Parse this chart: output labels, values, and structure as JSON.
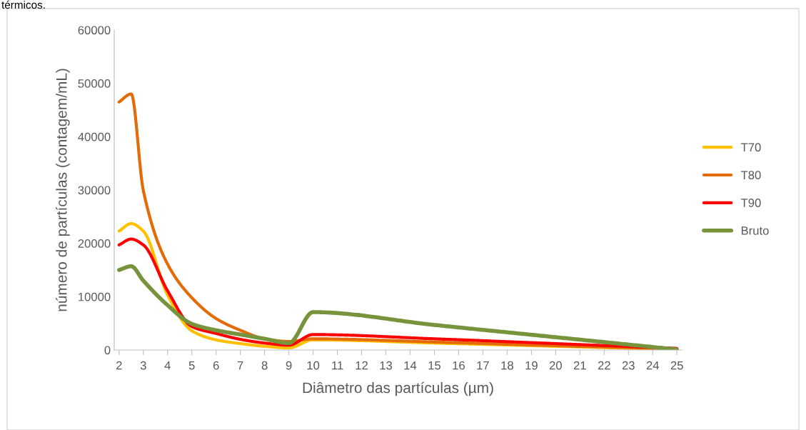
{
  "chart_data": {
    "type": "line",
    "xlabel": "Diâmetro das partículas (µm)",
    "ylabel": "número de partículas (contagem/mL)",
    "annotations": [
      "térmicos."
    ],
    "x": [
      2,
      2.5,
      3,
      4,
      5,
      6,
      7,
      8,
      9,
      10,
      15,
      20,
      25
    ],
    "series": [
      {
        "name": "T70",
        "color": "#ffc000",
        "values": [
          22300,
          23700,
          22300,
          10300,
          3600,
          1900,
          1200,
          700,
          400,
          1900,
          1300,
          700,
          100
        ]
      },
      {
        "name": "T80",
        "color": "#e36c09",
        "values": [
          46500,
          48000,
          29900,
          16100,
          9800,
          5900,
          3700,
          2100,
          1600,
          2100,
          1500,
          800,
          200
        ]
      },
      {
        "name": "T90",
        "color": "#ff0000",
        "values": [
          19700,
          20800,
          19700,
          11100,
          4400,
          3100,
          2000,
          1300,
          900,
          2900,
          2100,
          1200,
          300
        ]
      },
      {
        "name": "Bruto",
        "color": "#77933c",
        "values": [
          15000,
          15700,
          13000,
          8400,
          4900,
          3700,
          2900,
          2100,
          1300,
          7100,
          4700,
          2400,
          100
        ]
      }
    ],
    "xlim": [
      1.8,
      25.2
    ],
    "xticks": [
      2,
      3,
      4,
      5,
      6,
      7,
      8,
      9,
      10,
      11,
      12,
      13,
      14,
      15,
      16,
      17,
      18,
      19,
      20,
      21,
      22,
      23,
      24,
      25
    ],
    "ylim": [
      0,
      60000
    ],
    "yticks": [
      0,
      10000,
      20000,
      30000,
      40000,
      50000,
      60000
    ],
    "grid": false,
    "legend": "right",
    "marker": "none",
    "line_style": "solid"
  }
}
